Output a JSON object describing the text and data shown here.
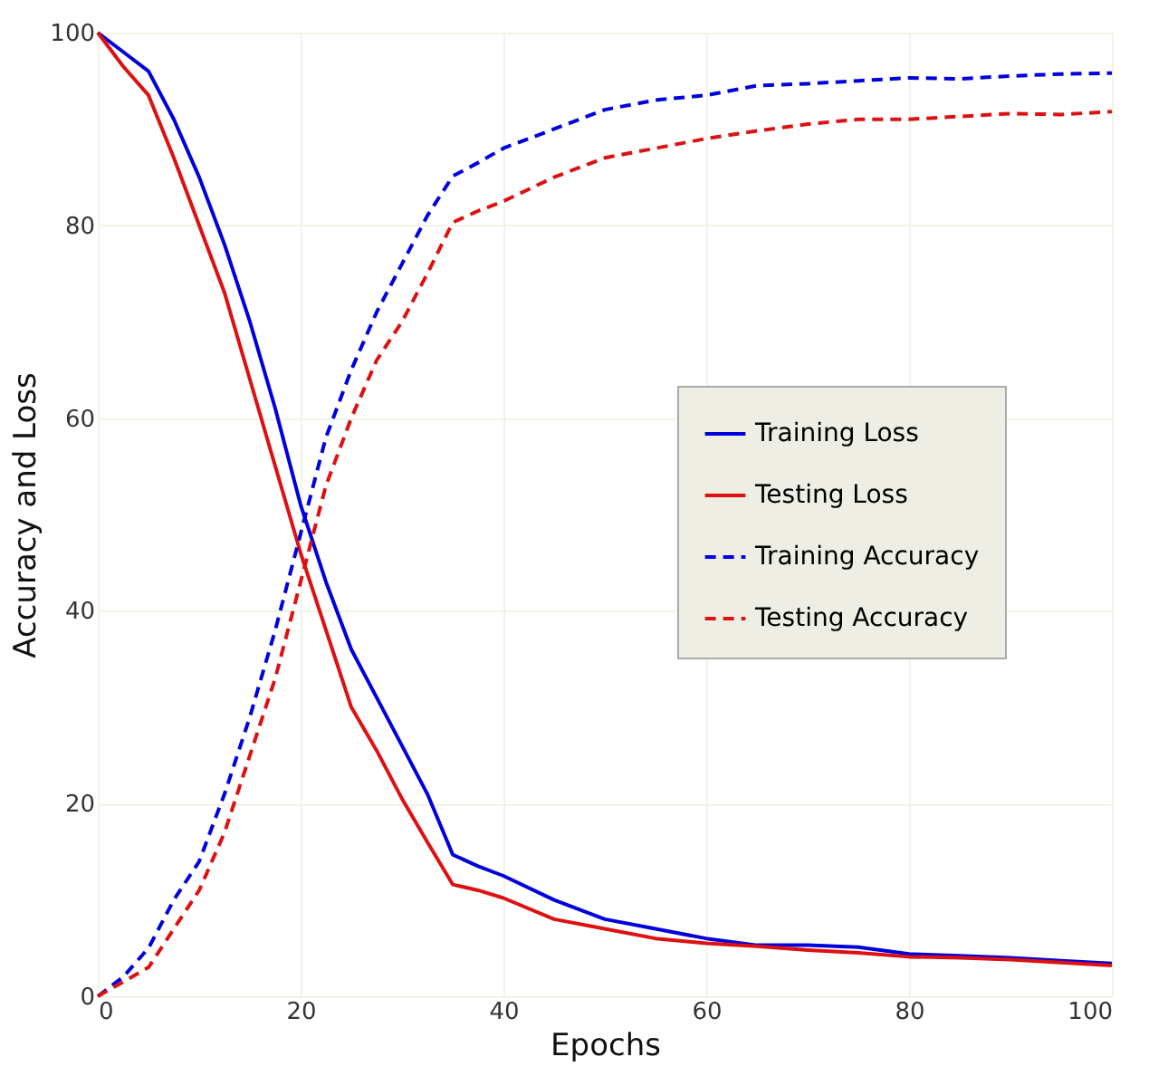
{
  "chart_data": {
    "type": "line",
    "xlabel": "Epochs",
    "ylabel": "Accuracy and Loss",
    "xlim": [
      0,
      100
    ],
    "ylim": [
      0,
      100
    ],
    "xticks": [
      0,
      20,
      40,
      60,
      80,
      100
    ],
    "yticks": [
      0,
      20,
      40,
      60,
      80,
      100
    ],
    "grid": true,
    "legend": "right",
    "x": [
      0,
      2.5,
      5,
      7.5,
      10,
      12.5,
      15,
      17.5,
      20,
      22.5,
      25,
      27.5,
      30,
      32.5,
      35,
      37.5,
      40,
      45,
      50,
      55,
      60,
      65,
      70,
      75,
      80,
      85,
      90,
      95,
      100
    ],
    "series": [
      {
        "name": "Training Loss",
        "color": "#0000dd",
        "line_style": "solid",
        "values": [
          100,
          98,
          96,
          91,
          85,
          78,
          70,
          61,
          51,
          43,
          36,
          31,
          26,
          21,
          14.7,
          13.5,
          12.5,
          10,
          8,
          7,
          6,
          5.3,
          5.3,
          5.1,
          4.4,
          4.2,
          4,
          3.7,
          3.4
        ]
      },
      {
        "name": "Testing Loss",
        "color": "#dd1111",
        "line_style": "solid",
        "values": [
          100,
          96.5,
          93.5,
          87,
          80,
          73,
          64,
          55,
          46,
          38,
          30,
          25.5,
          20.5,
          16,
          11.6,
          11,
          10.2,
          8,
          7,
          6,
          5.5,
          5.2,
          4.8,
          4.5,
          4.1,
          4,
          3.8,
          3.5,
          3.2
        ]
      },
      {
        "name": "Training Accuracy",
        "color": "#0000dd",
        "line_style": "dashed",
        "values": [
          0,
          2,
          5,
          10,
          14,
          21,
          29,
          38,
          48,
          58,
          65,
          71,
          76,
          81,
          85.1,
          86.5,
          88,
          90,
          92,
          93,
          93.5,
          94.5,
          94.7,
          95,
          95.3,
          95.2,
          95.5,
          95.7,
          95.8
        ]
      },
      {
        "name": "Testing Accuracy",
        "color": "#dd1111",
        "line_style": "dashed",
        "values": [
          0,
          1.5,
          3,
          7,
          11,
          17,
          25,
          33,
          43,
          53,
          60,
          66,
          70,
          75,
          80.3,
          81.5,
          82.5,
          85,
          87,
          88,
          89,
          89.8,
          90.5,
          91,
          91,
          91.3,
          91.6,
          91.5,
          91.8
        ]
      }
    ]
  }
}
